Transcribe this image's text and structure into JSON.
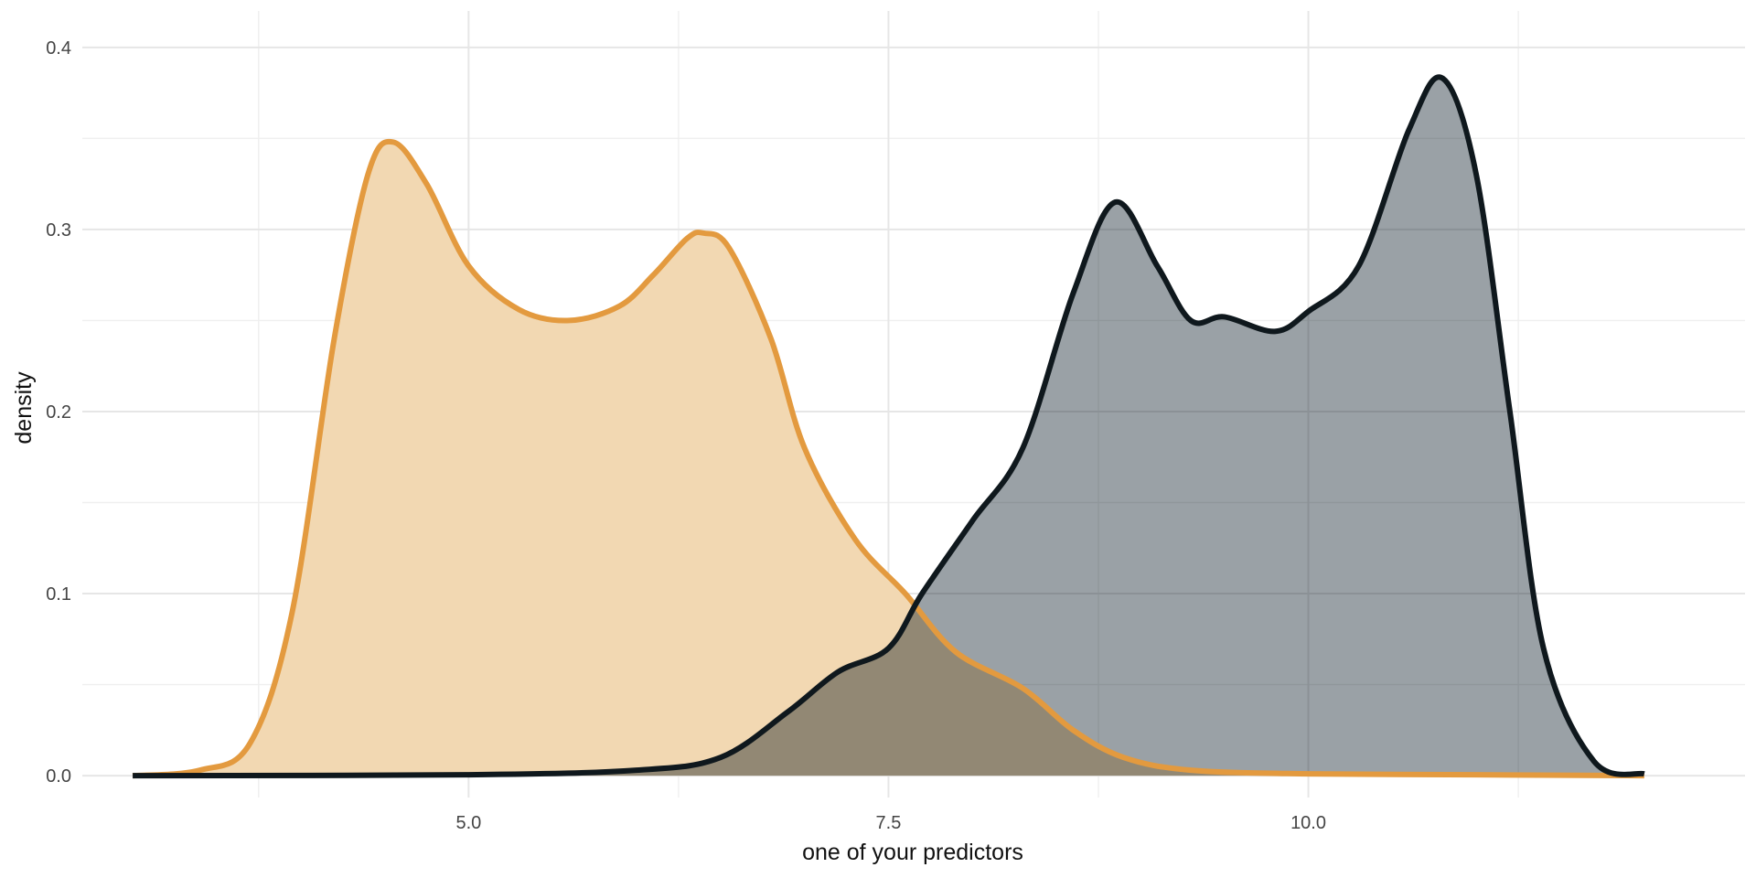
{
  "chart_data": {
    "type": "area",
    "xlabel": "one of your predictors",
    "ylabel": "density",
    "xlim": [
      2.7,
      12.6
    ],
    "ylim": [
      -0.012,
      0.42
    ],
    "x_ticks": [
      5.0,
      7.5,
      10.0
    ],
    "x_tick_labels": [
      "5.0",
      "7.5",
      "10.0"
    ],
    "y_ticks": [
      0.0,
      0.1,
      0.2,
      0.3,
      0.4
    ],
    "y_tick_labels": [
      "0.0",
      "0.1",
      "0.2",
      "0.3",
      "0.4"
    ],
    "grid": true,
    "legend": "none",
    "series": [
      {
        "line_color": "#e39a3f",
        "fill_color": "#f2d8b2",
        "x": [
          3.0,
          3.4,
          3.7,
          3.95,
          4.2,
          4.4,
          4.55,
          4.75,
          5.0,
          5.3,
          5.6,
          5.9,
          6.1,
          6.3,
          6.4,
          6.55,
          6.8,
          7.0,
          7.3,
          7.6,
          7.9,
          8.3,
          8.6,
          8.9,
          9.3,
          10.0,
          11.0,
          12.0
        ],
        "y": [
          0.0,
          0.003,
          0.018,
          0.09,
          0.24,
          0.33,
          0.348,
          0.325,
          0.28,
          0.256,
          0.25,
          0.258,
          0.275,
          0.295,
          0.298,
          0.29,
          0.24,
          0.18,
          0.13,
          0.1,
          0.068,
          0.048,
          0.025,
          0.01,
          0.003,
          0.001,
          0.0005,
          0.0
        ]
      },
      {
        "line_color": "#0f181d",
        "fill_color": "#8f979c",
        "x": [
          3.0,
          5.0,
          6.0,
          6.5,
          6.9,
          7.2,
          7.5,
          7.7,
          8.0,
          8.3,
          8.6,
          8.85,
          9.1,
          9.3,
          9.5,
          9.8,
          10.0,
          10.3,
          10.6,
          10.8,
          11.0,
          11.2,
          11.4,
          11.7,
          12.0
        ],
        "y": [
          0.0,
          0.0005,
          0.003,
          0.01,
          0.035,
          0.057,
          0.07,
          0.1,
          0.14,
          0.18,
          0.265,
          0.315,
          0.28,
          0.25,
          0.252,
          0.244,
          0.255,
          0.28,
          0.355,
          0.383,
          0.33,
          0.2,
          0.07,
          0.008,
          0.001
        ]
      }
    ]
  }
}
